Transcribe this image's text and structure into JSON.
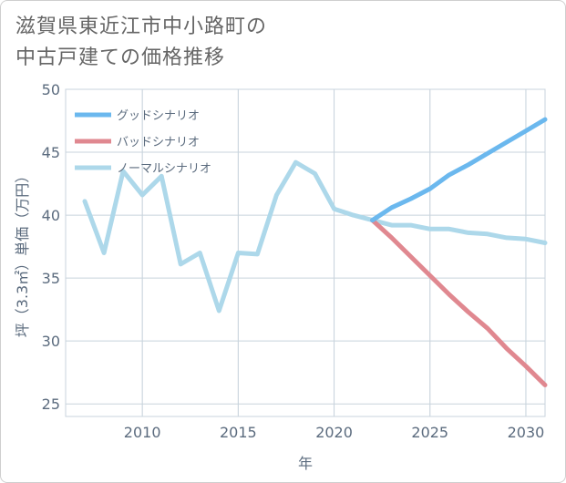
{
  "header": {
    "title_line1": "滋賀県東近江市中小路町の",
    "title_line2": "中古戸建ての価格推移"
  },
  "chart_data": {
    "type": "line",
    "xlabel": "年",
    "ylabel": "坪（3.3㎡）単価（万円）",
    "xlim": [
      2006,
      2031
    ],
    "ylim": [
      24,
      50
    ],
    "xticks": [
      2010,
      2015,
      2020,
      2025,
      2030
    ],
    "yticks": [
      25,
      30,
      35,
      40,
      45,
      50
    ],
    "grid": true,
    "legend_position": "top-left",
    "series": [
      {
        "name": "グッドシナリオ",
        "color": "#6bb8ee",
        "x": [
          2022,
          2023,
          2024,
          2025,
          2026,
          2027,
          2028,
          2029,
          2030,
          2031
        ],
        "values": [
          39.6,
          40.6,
          41.3,
          42.1,
          43.2,
          44.0,
          44.9,
          45.8,
          46.7,
          47.6
        ]
      },
      {
        "name": "バッドシナリオ",
        "color": "#e08890",
        "x": [
          2022,
          2023,
          2024,
          2025,
          2026,
          2027,
          2028,
          2029,
          2030,
          2031
        ],
        "values": [
          39.6,
          38.2,
          36.7,
          35.2,
          33.7,
          32.3,
          31.0,
          29.4,
          28.0,
          26.5
        ]
      },
      {
        "name": "ノーマルシナリオ",
        "color": "#add8ea",
        "x": [
          2007,
          2008,
          2009,
          2010,
          2011,
          2012,
          2013,
          2014,
          2015,
          2016,
          2017,
          2018,
          2019,
          2020,
          2021,
          2022,
          2023,
          2024,
          2025,
          2026,
          2027,
          2028,
          2029,
          2030,
          2031
        ],
        "values": [
          41.1,
          37.0,
          43.5,
          41.6,
          43.1,
          36.1,
          37.0,
          32.4,
          37.0,
          36.9,
          41.6,
          44.2,
          43.3,
          40.5,
          40.0,
          39.6,
          39.2,
          39.2,
          38.9,
          38.9,
          38.6,
          38.5,
          38.2,
          38.1,
          37.8
        ]
      }
    ]
  }
}
